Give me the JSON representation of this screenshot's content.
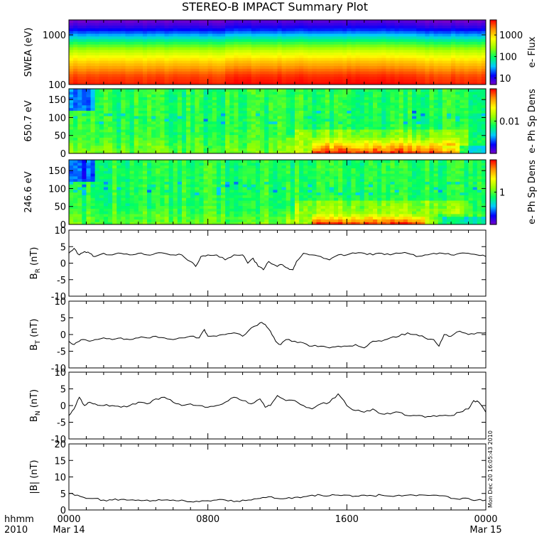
{
  "title": "STEREO-B IMPACT Summary Plot",
  "x_axis": {
    "corner_label_line1": "hhmm",
    "corner_label_line2": "2010",
    "ticks": [
      {
        "time": "0000",
        "date": "Mar 14"
      },
      {
        "time": "0800",
        "date": ""
      },
      {
        "time": "1600",
        "date": ""
      },
      {
        "time": "0000",
        "date": "Mar 15"
      }
    ]
  },
  "timestamp": "Mon Dec 20 16:05:43 2010",
  "colors": {
    "line": "#000000",
    "rainbow": [
      "#7a00c8",
      "#0000ff",
      "#00c8ff",
      "#00ff64",
      "#96ff00",
      "#ffff00",
      "#ff9600",
      "#ff0000"
    ]
  },
  "chart_data": [
    {
      "type": "heatmap",
      "ylabel": "SWEA (eV)",
      "ylim": [
        100,
        2000
      ],
      "yscale": "log",
      "yticks": [
        {
          "value": 100,
          "label": "100"
        },
        {
          "value": 1000,
          "label": "1000"
        }
      ],
      "colorbar": {
        "label": "e- Flux",
        "scale": "log",
        "range": [
          5,
          5000
        ],
        "ticks": [
          {
            "value": 10,
            "label": "10"
          },
          {
            "value": 100,
            "label": "100"
          },
          {
            "value": 1000,
            "label": "1000"
          }
        ]
      },
      "description_profile_log_flux_by_energy": [
        {
          "energy": 100,
          "log_flux": 3.62
        },
        {
          "energy": 150,
          "log_flux": 3.5
        },
        {
          "energy": 200,
          "log_flux": 3.3
        },
        {
          "energy": 300,
          "log_flux": 3.0
        },
        {
          "energy": 500,
          "log_flux": 2.5
        },
        {
          "energy": 700,
          "log_flux": 2.05
        },
        {
          "energy": 1000,
          "log_flux": 1.5
        },
        {
          "energy": 1400,
          "log_flux": 1.0
        },
        {
          "energy": 2000,
          "log_flux": 0.7
        }
      ]
    },
    {
      "type": "heatmap",
      "ylabel": "650.7 eV",
      "ylim": [
        0,
        180
      ],
      "yticks": [
        {
          "value": 0,
          "label": "0"
        },
        {
          "value": 50,
          "label": "50"
        },
        {
          "value": 100,
          "label": "100"
        },
        {
          "value": 150,
          "label": "150"
        }
      ],
      "colorbar": {
        "label": "e- Ph Sp Dens",
        "scale": "log",
        "range": [
          0.001,
          0.1
        ],
        "ticks": [
          {
            "value": 0.01,
            "label": "0.01"
          }
        ]
      },
      "strahl_band": {
        "start_hour": 13.9,
        "end_hour": 22.4,
        "max_pitch_angle": 45
      }
    },
    {
      "type": "heatmap",
      "ylabel": "246.6 eV",
      "ylim": [
        0,
        180
      ],
      "yticks": [
        {
          "value": 0,
          "label": "0"
        },
        {
          "value": 50,
          "label": "50"
        },
        {
          "value": 100,
          "label": "100"
        },
        {
          "value": 150,
          "label": "150"
        }
      ],
      "colorbar": {
        "label": "e- Ph Sp Dens",
        "scale": "log",
        "range": [
          0.1,
          10
        ],
        "ticks": [
          {
            "value": 1,
            "label": "1"
          }
        ]
      },
      "strahl_band": {
        "start_hour": 13.9,
        "end_hour": 20.4,
        "max_pitch_angle": 30
      }
    },
    {
      "type": "line",
      "ylabel": "B",
      "ylabel_sub": "R",
      "ylabel_unit": "(nT)",
      "ylim": [
        -10,
        10
      ],
      "yticks": [
        -10,
        -5,
        0,
        5,
        10
      ],
      "series": [
        {
          "x": [
            0,
            0.3,
            0.6,
            0.9,
            1.2,
            1.5,
            2,
            2.5,
            3,
            3.5,
            4,
            4.5,
            5,
            5.5,
            6,
            6.5,
            7,
            7.3,
            7.6,
            8,
            8.5,
            9,
            9.5,
            10,
            10.3,
            10.6,
            10.9,
            11.2,
            11.5,
            12,
            12.3,
            12.6,
            12.9,
            13.1,
            13.5,
            14,
            14.5,
            15,
            15.5,
            16,
            16.5,
            17,
            17.5,
            18,
            18.5,
            19,
            19.5,
            20,
            20.5,
            21,
            21.5,
            22,
            22.5,
            23,
            23.5,
            24
          ],
          "y": [
            3,
            4.5,
            2.5,
            3.5,
            3,
            2,
            3,
            2.5,
            3,
            2.5,
            3,
            2.5,
            3,
            3,
            2.5,
            2.5,
            0.5,
            -1,
            2,
            2.5,
            2.5,
            1,
            2.5,
            2.5,
            0,
            1.5,
            -1,
            -2,
            0.5,
            -1,
            -0.5,
            -1.5,
            -2,
            0.5,
            3,
            2.5,
            2,
            1,
            2.5,
            2.5,
            3,
            3,
            2.5,
            3,
            2.5,
            3,
            3,
            2,
            2.5,
            3,
            3,
            2.5,
            3,
            3,
            2.5,
            2
          ]
        }
      ]
    },
    {
      "type": "line",
      "ylabel": "B",
      "ylabel_sub": "T",
      "ylabel_unit": "(nT)",
      "ylim": [
        -10,
        10
      ],
      "yticks": [
        -10,
        -5,
        0,
        5,
        10
      ],
      "series": [
        {
          "x": [
            0,
            0.3,
            0.6,
            0.9,
            1.2,
            1.5,
            2,
            2.5,
            3,
            3.5,
            4,
            4.5,
            5,
            5.5,
            6,
            6.5,
            7,
            7.5,
            7.8,
            8,
            8.5,
            9,
            9.5,
            10,
            10.5,
            11,
            11.3,
            11.6,
            11.9,
            12.2,
            12.5,
            13,
            13.5,
            14,
            14.5,
            15,
            15.5,
            16,
            16.5,
            17,
            17.5,
            18,
            18.5,
            19,
            19.5,
            20,
            20.5,
            21,
            21.3,
            21.6,
            22,
            22.5,
            23,
            23.5,
            24
          ],
          "y": [
            -2,
            -3,
            -2,
            -1.5,
            -2,
            -1.5,
            -1,
            -1.5,
            -1,
            -1.5,
            -1,
            -1,
            -0.5,
            -1,
            -1.5,
            -1,
            -0.5,
            -1,
            1.5,
            -0.5,
            -0.5,
            0,
            0.5,
            -0.5,
            2,
            3.5,
            3,
            1,
            -2,
            -3,
            -1.5,
            -2,
            -2.5,
            -3.5,
            -3.5,
            -4,
            -3.5,
            -3.5,
            -3,
            -4,
            -2,
            -2,
            -1,
            -0.5,
            0.5,
            0,
            -1,
            -1.5,
            -3.5,
            0,
            -0.5,
            1,
            0,
            0.5,
            0.5
          ]
        }
      ]
    },
    {
      "type": "line",
      "ylabel": "B",
      "ylabel_sub": "N",
      "ylabel_unit": "(nT)",
      "ylim": [
        -10,
        10
      ],
      "yticks": [
        -10,
        -5,
        0,
        5,
        10
      ],
      "series": [
        {
          "x": [
            0,
            0.3,
            0.6,
            0.9,
            1.2,
            1.5,
            2,
            2.5,
            3,
            3.5,
            4,
            4.5,
            5,
            5.5,
            6,
            6.5,
            7,
            7.5,
            8,
            8.5,
            9,
            9.5,
            10,
            10.5,
            11,
            11.3,
            11.6,
            12,
            12.5,
            13,
            13.5,
            14,
            14.5,
            15,
            15.5,
            16,
            16.5,
            17,
            17.5,
            18,
            18.5,
            19,
            19.5,
            20,
            20.5,
            21,
            21.5,
            22,
            22.5,
            23,
            23.3,
            23.6,
            24
          ],
          "y": [
            -3,
            -1,
            2.5,
            0,
            1,
            0.5,
            0,
            0,
            -0.5,
            0,
            1,
            0.5,
            2,
            2.5,
            1,
            0,
            0.5,
            0,
            -0.5,
            0,
            1,
            2.5,
            1.5,
            0.5,
            2,
            -0.5,
            0,
            3,
            1.5,
            1.5,
            0,
            -1,
            0.5,
            1,
            3.5,
            0,
            -1.5,
            -2,
            -1,
            -2.5,
            -2.5,
            -2,
            -3,
            -3,
            -3.5,
            -3,
            -3,
            -3,
            -2,
            -1,
            1.5,
            1,
            -2
          ]
        }
      ]
    },
    {
      "type": "line",
      "ylabel": "|B|",
      "ylabel_unit": "(nT)",
      "ylim": [
        0,
        20
      ],
      "yticks": [
        0,
        5,
        10,
        15,
        20
      ],
      "series": [
        {
          "x": [
            0,
            0.5,
            1,
            1.5,
            2,
            2.5,
            3,
            3.5,
            4,
            4.5,
            5,
            5.5,
            6,
            6.5,
            7,
            7.5,
            8,
            8.5,
            9,
            9.5,
            10,
            10.5,
            11,
            11.5,
            12,
            12.5,
            13,
            13.5,
            14,
            14.5,
            15,
            15.5,
            16,
            16.5,
            17,
            17.5,
            18,
            18.5,
            19,
            19.5,
            20,
            20.5,
            21,
            21.5,
            22,
            22.5,
            23,
            23.5,
            24
          ],
          "y": [
            5,
            4.5,
            3.5,
            3.5,
            3,
            3,
            3.2,
            3,
            3,
            3,
            2.8,
            3,
            3,
            3,
            2.5,
            2.5,
            2.8,
            3,
            3,
            2.5,
            3,
            3,
            3.5,
            4,
            3.5,
            3.5,
            3.8,
            4,
            4.5,
            4.5,
            4.3,
            4.5,
            4.5,
            4.2,
            4.5,
            4.3,
            4.5,
            4.2,
            4.5,
            4.5,
            4.3,
            4.5,
            4.5,
            4.3,
            3.5,
            3.2,
            3.5,
            3,
            3
          ]
        }
      ]
    }
  ]
}
